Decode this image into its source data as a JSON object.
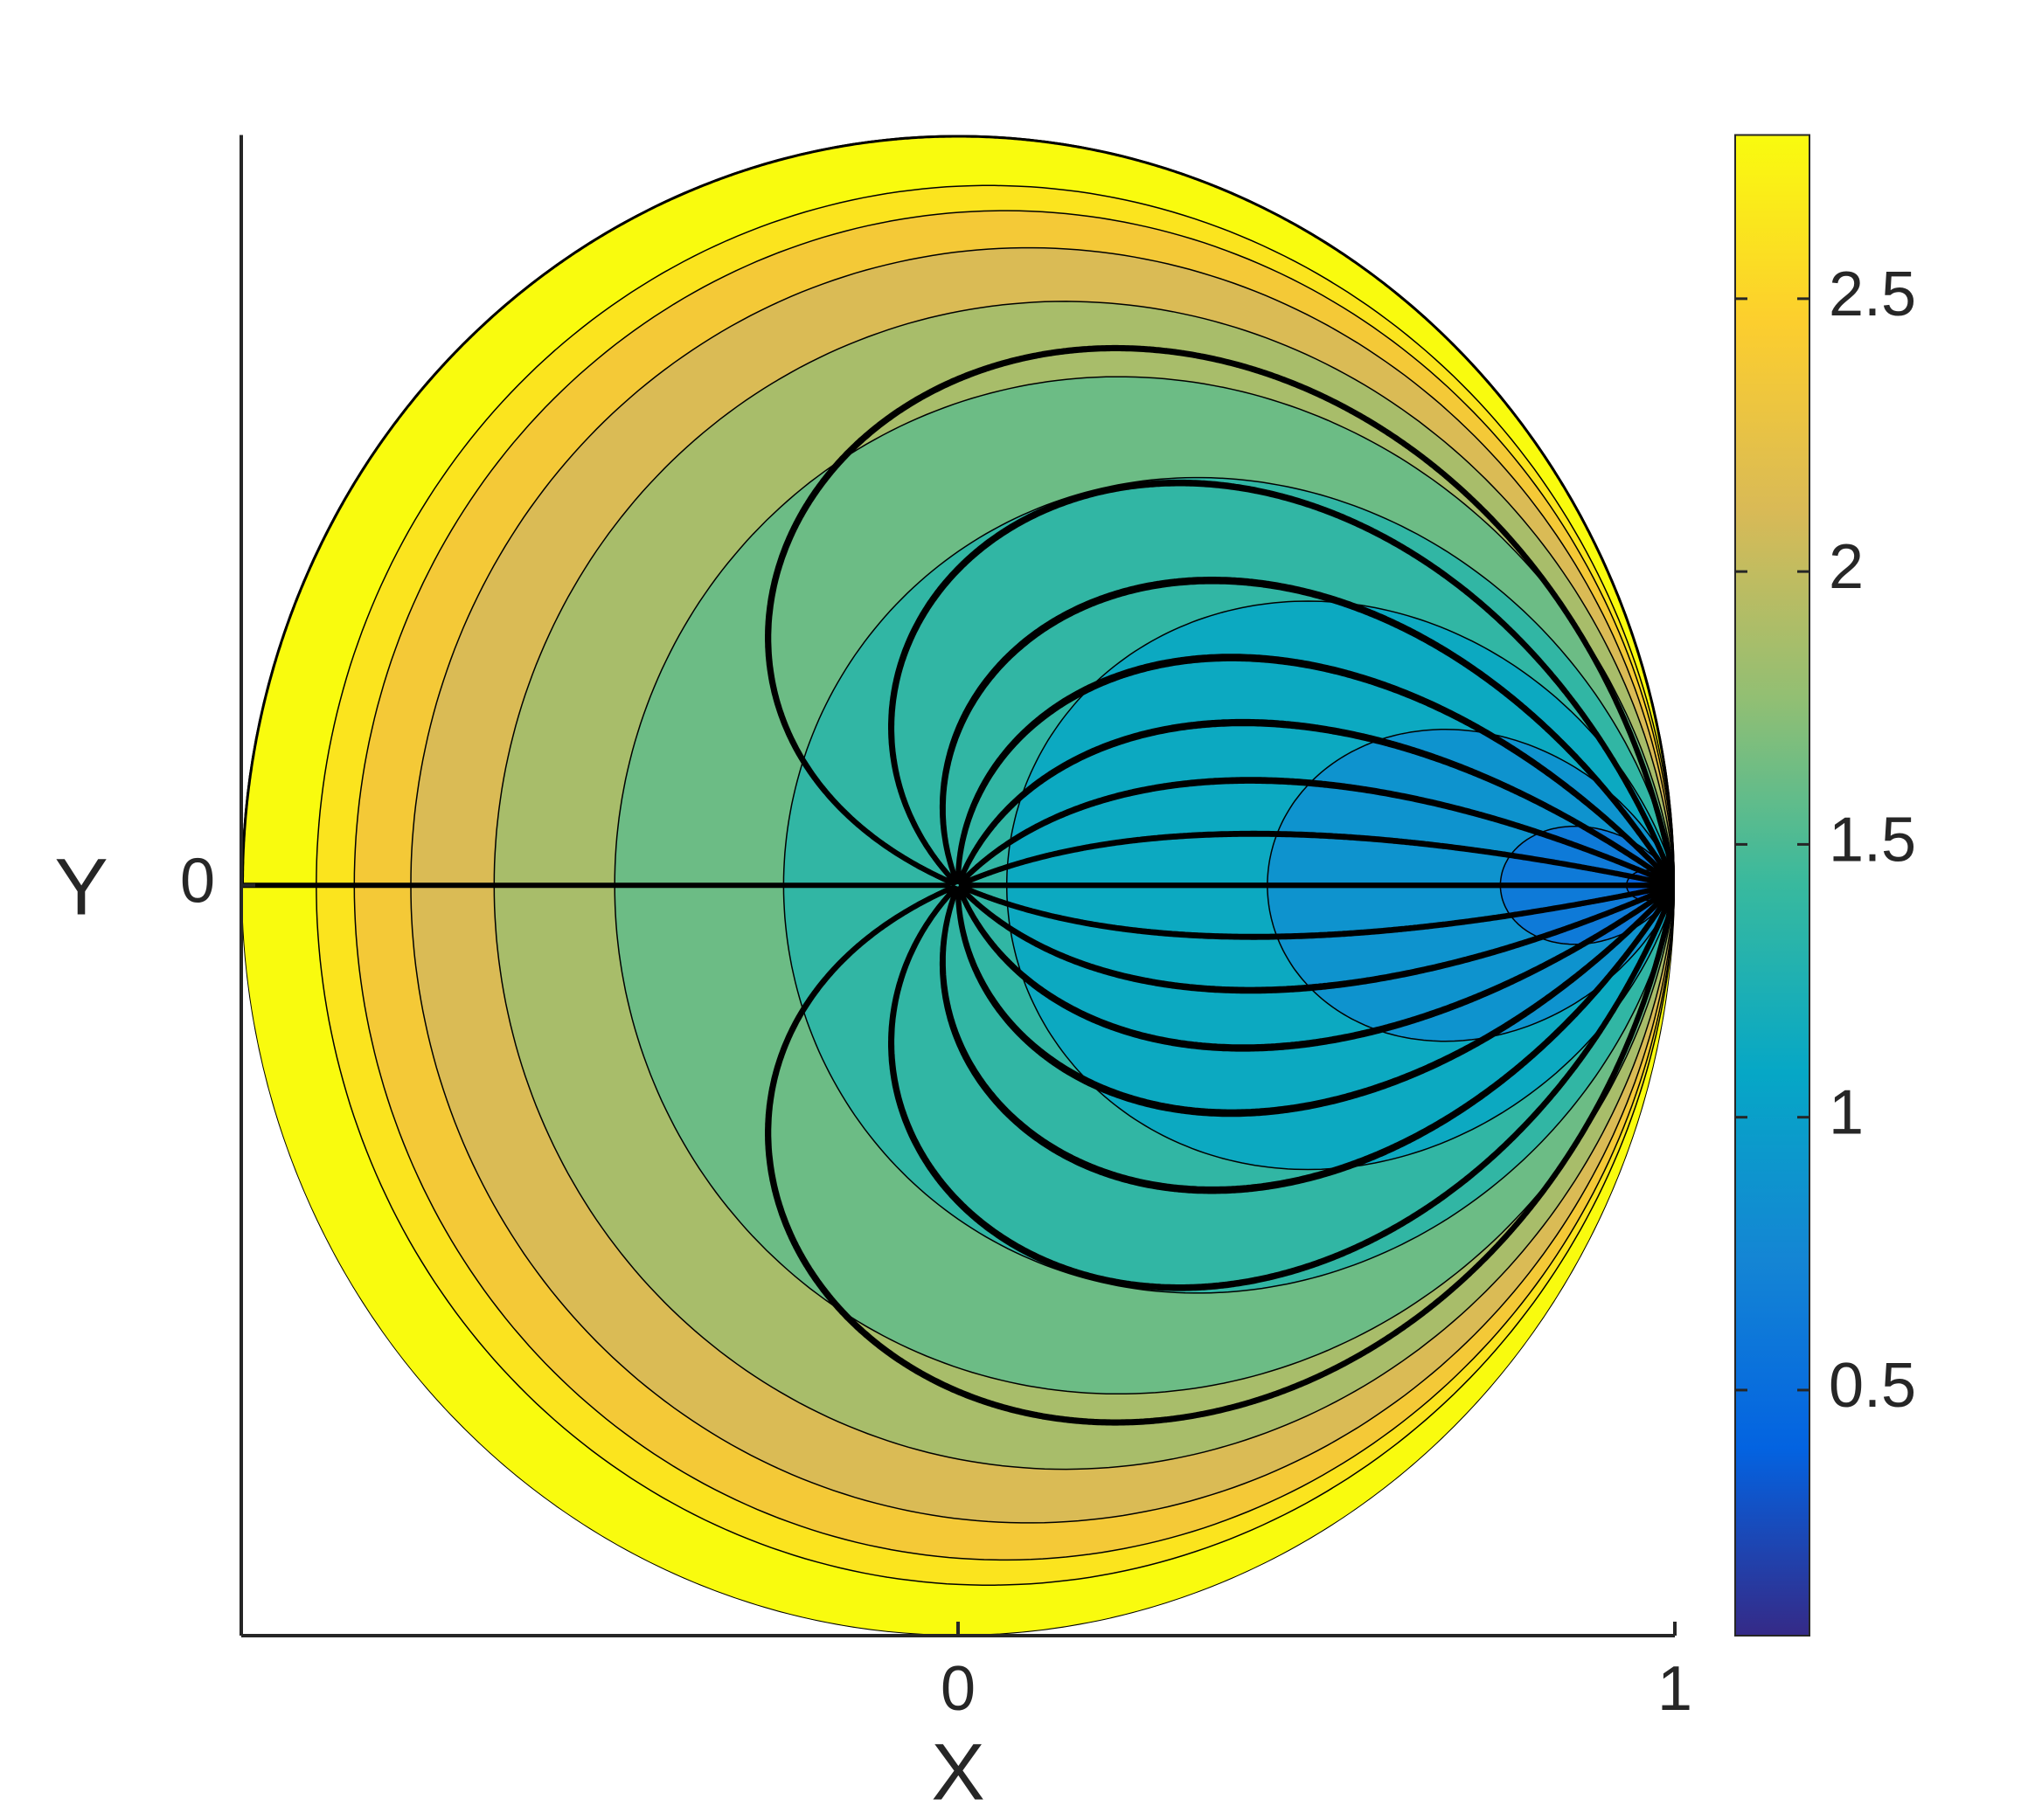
{
  "chart_data": {
    "type": "contour",
    "xlabel": "X",
    "ylabel": "Y",
    "xlim": [
      -1,
      1
    ],
    "xticks": [
      0,
      1
    ],
    "ylim": [
      -1,
      1
    ],
    "yticks": [
      0
    ],
    "colorbar": {
      "clim": [
        0.05,
        2.8
      ],
      "ticks": [
        0.5,
        1,
        1.5,
        2,
        2.5
      ]
    },
    "colormap": [
      "#352a87",
      "#0363e1",
      "#1485d4",
      "#06a7c6",
      "#38b99e",
      "#92bf73",
      "#d9ba56",
      "#fcce2e",
      "#f9fb0e"
    ]
  }
}
